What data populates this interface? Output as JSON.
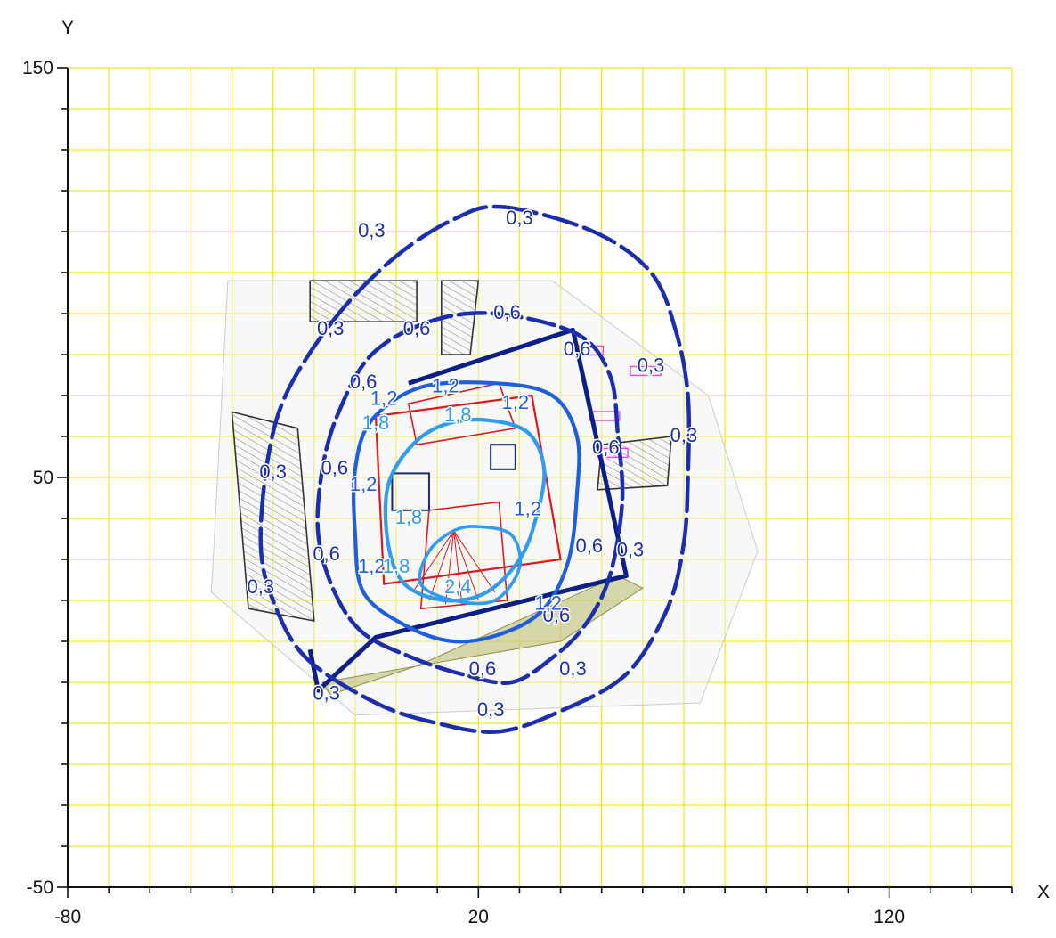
{
  "chart_data": {
    "type": "contour",
    "title": "",
    "xlabel": "X",
    "ylabel": "Y",
    "xlim": [
      -80,
      150
    ],
    "ylim": [
      -50,
      150
    ],
    "x_ticks": [
      -80,
      20,
      120
    ],
    "y_ticks": [
      -50,
      50,
      150
    ],
    "x_tick_labels": [
      "-80",
      "20",
      "120"
    ],
    "y_tick_labels": [
      "-50",
      "50",
      "150"
    ],
    "grid": {
      "on": true,
      "color": "#f2ea1e",
      "x_step": 10,
      "y_step": 10
    },
    "colors": {
      "axis": "#111111",
      "contour_outer": "#1b2fae",
      "contour_mid": "#1f5ee0",
      "contour_inner": "#2f9cf0",
      "building_outline": "#0b1f86",
      "plan_red": "#e0181e",
      "plan_hatch": "#555555",
      "plan_magenta": "#e04be0",
      "plan_olive": "#b9b96a"
    },
    "contours": [
      {
        "level": "0,3",
        "points": [
          [
            26,
            116
          ],
          [
            48,
            110
          ],
          [
            62,
            100
          ],
          [
            68,
            86
          ],
          [
            71,
            70
          ],
          [
            71,
            50
          ],
          [
            70,
            34
          ],
          [
            66,
            18
          ],
          [
            56,
            2
          ],
          [
            40,
            -7
          ],
          [
            25,
            -12
          ],
          [
            10,
            -10
          ],
          [
            -5,
            -5
          ],
          [
            -22,
            6
          ],
          [
            -30,
            20
          ],
          [
            -33,
            34
          ],
          [
            -31,
            56
          ],
          [
            -26,
            72
          ],
          [
            -14,
            90
          ],
          [
            0,
            104
          ],
          [
            14,
            113
          ]
        ]
      },
      {
        "level": "0,6",
        "points": [
          [
            24,
            90
          ],
          [
            44,
            85
          ],
          [
            52,
            75
          ],
          [
            54,
            60
          ],
          [
            55,
            44
          ],
          [
            52,
            26
          ],
          [
            46,
            14
          ],
          [
            38,
            6
          ],
          [
            28,
            0
          ],
          [
            16,
            2
          ],
          [
            4,
            6
          ],
          [
            -8,
            12
          ],
          [
            -15,
            22
          ],
          [
            -19,
            36
          ],
          [
            -18,
            52
          ],
          [
            -14,
            66
          ],
          [
            -6,
            80
          ],
          [
            8,
            88
          ]
        ]
      },
      {
        "level": "1,2",
        "points": [
          [
            24,
            73
          ],
          [
            38,
            70
          ],
          [
            44,
            60
          ],
          [
            44,
            46
          ],
          [
            42,
            30
          ],
          [
            36,
            18
          ],
          [
            26,
            12
          ],
          [
            14,
            10
          ],
          [
            2,
            14
          ],
          [
            -8,
            22
          ],
          [
            -10,
            36
          ],
          [
            -10,
            52
          ],
          [
            -6,
            64
          ],
          [
            6,
            72
          ]
        ]
      },
      {
        "level": "1,8",
        "points": [
          [
            22,
            64
          ],
          [
            32,
            61
          ],
          [
            36,
            52
          ],
          [
            34,
            40
          ],
          [
            30,
            30
          ],
          [
            22,
            22
          ],
          [
            12,
            20
          ],
          [
            2,
            24
          ],
          [
            -2,
            34
          ],
          [
            -2,
            48
          ],
          [
            4,
            58
          ],
          [
            12,
            63
          ]
        ]
      },
      {
        "level": "2,4",
        "points": [
          [
            20,
            38
          ],
          [
            28,
            36
          ],
          [
            30,
            28
          ],
          [
            24,
            20
          ],
          [
            14,
            20
          ],
          [
            6,
            24
          ],
          [
            8,
            32
          ],
          [
            14,
            37
          ]
        ]
      }
    ],
    "contour_labels": [
      {
        "text": "0,3",
        "x": 30,
        "y": 113
      },
      {
        "text": "0,3",
        "x": 62,
        "y": 77
      },
      {
        "text": "0,3",
        "x": 57,
        "y": 32
      },
      {
        "text": "0,3",
        "x": 43,
        "y": 3
      },
      {
        "text": "0,3",
        "x": 23,
        "y": -7
      },
      {
        "text": "0,3",
        "x": -6,
        "y": 110
      },
      {
        "text": "0,3",
        "x": -16,
        "y": 86
      },
      {
        "text": "0,3",
        "x": -30,
        "y": 51
      },
      {
        "text": "0,3",
        "x": -33,
        "y": 23
      },
      {
        "text": "0,3",
        "x": -17,
        "y": -3
      },
      {
        "text": "0,3",
        "x": 70,
        "y": 60
      },
      {
        "text": "0,6",
        "x": 27,
        "y": 90
      },
      {
        "text": "0,6",
        "x": 44,
        "y": 81
      },
      {
        "text": "0,6",
        "x": 5,
        "y": 86
      },
      {
        "text": "0,6",
        "x": -8,
        "y": 73
      },
      {
        "text": "0,6",
        "x": -15,
        "y": 52
      },
      {
        "text": "0,6",
        "x": -17,
        "y": 31
      },
      {
        "text": "0,6",
        "x": 21,
        "y": 3
      },
      {
        "text": "0,6",
        "x": 51,
        "y": 57
      },
      {
        "text": "0,6",
        "x": 47,
        "y": 33
      },
      {
        "text": "0,6",
        "x": 39,
        "y": 16
      },
      {
        "text": "1,2",
        "x": 12,
        "y": 72
      },
      {
        "text": "1,2",
        "x": 29,
        "y": 68
      },
      {
        "text": "1,2",
        "x": -3,
        "y": 69
      },
      {
        "text": "1,2",
        "x": -8,
        "y": 48
      },
      {
        "text": "1,2",
        "x": -6,
        "y": 28
      },
      {
        "text": "1,2",
        "x": 32,
        "y": 42
      },
      {
        "text": "1,2",
        "x": 37,
        "y": 19
      },
      {
        "text": "1,8",
        "x": 15,
        "y": 65
      },
      {
        "text": "1,8",
        "x": -5,
        "y": 63
      },
      {
        "text": "1,8",
        "x": 3,
        "y": 40
      },
      {
        "text": "1,8",
        "x": 0,
        "y": 28
      },
      {
        "text": "2,4",
        "x": 15,
        "y": 23
      }
    ],
    "plan_overlay": {
      "outline": [
        [
          3,
          73
        ],
        [
          43,
          86
        ],
        [
          56,
          26
        ],
        [
          -5,
          11
        ],
        [
          -19,
          -2
        ],
        [
          -21,
          8
        ]
      ],
      "building_red": [
        [
          -5,
          65
        ],
        [
          33,
          70
        ],
        [
          40,
          30
        ],
        [
          -3,
          24
        ]
      ],
      "inner_red_1": [
        [
          3,
          68
        ],
        [
          25,
          73
        ],
        [
          29,
          62
        ],
        [
          5,
          58
        ]
      ],
      "inner_red_2": [
        [
          8,
          42
        ],
        [
          25,
          44
        ],
        [
          27,
          20
        ],
        [
          6,
          18
        ]
      ],
      "hatch_blocks": [
        [
          [
            -21,
            98
          ],
          [
            5,
            98
          ],
          [
            5,
            88
          ],
          [
            -21,
            88
          ]
        ],
        [
          [
            -40,
            66
          ],
          [
            -24,
            62
          ],
          [
            -20,
            15
          ],
          [
            -36,
            18
          ]
        ],
        [
          [
            11,
            98
          ],
          [
            20,
            98
          ],
          [
            18,
            80
          ],
          [
            11,
            80
          ]
        ],
        [
          [
            50,
            58
          ],
          [
            67,
            60
          ],
          [
            66,
            48
          ],
          [
            49,
            47
          ]
        ]
      ],
      "olive_strip": [
        [
          -18,
          0
        ],
        [
          40,
          10
        ],
        [
          60,
          23
        ],
        [
          54,
          26
        ],
        [
          5,
          4
        ],
        [
          -16,
          -3
        ]
      ],
      "faint_area": [
        [
          -41,
          98
        ],
        [
          38,
          98
        ],
        [
          76,
          70
        ],
        [
          88,
          32
        ],
        [
          74,
          -5
        ],
        [
          -10,
          -8
        ],
        [
          -45,
          22
        ]
      ],
      "magenta_marks": [
        [
          43,
          81
        ],
        [
          57,
          76
        ],
        [
          47,
          65
        ],
        [
          49,
          56
        ]
      ]
    }
  }
}
